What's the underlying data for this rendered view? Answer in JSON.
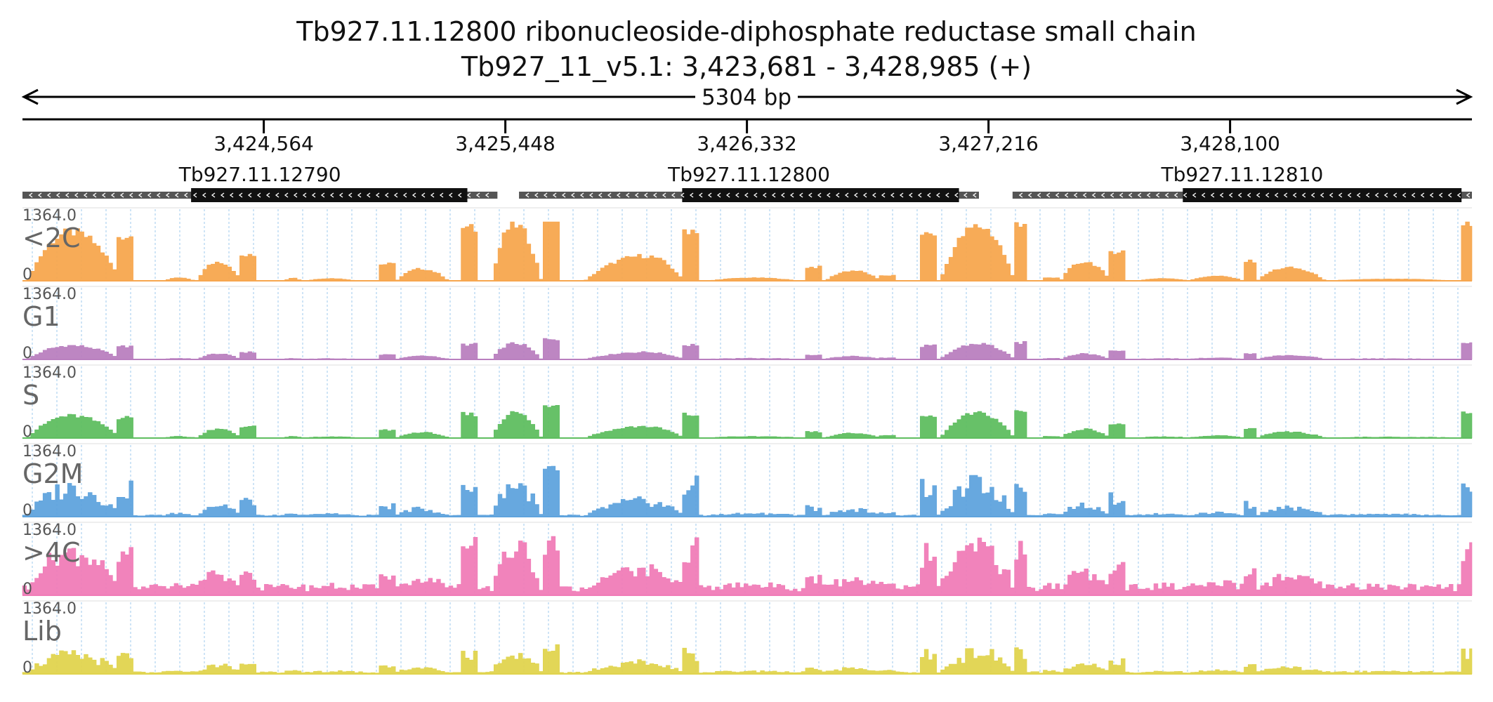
{
  "title_line1": "Tb927.11.12800  ribonucleoside-diphosphate reductase small chain",
  "title_line2": "Tb927_11_v5.1: 3,423,681 - 3,428,985 (+)",
  "span_label": "5304 bp",
  "chart_data": {
    "type": "area",
    "chromosome": "Tb927_11_v5.1",
    "x_range": [
      3423681,
      3428985
    ],
    "strand": "+",
    "x_ticks": [
      3424564,
      3425448,
      3426332,
      3427216,
      3428100
    ],
    "x_tick_labels": [
      "3,424,564",
      "3,425,448",
      "3,426,332",
      "3,427,216",
      "3,428,100"
    ],
    "genes": [
      {
        "name": "Tb927.11.12790",
        "start": 3423681,
        "end": 3425419,
        "cds_start": 3424298,
        "cds_end": 3425309,
        "strand": "-"
      },
      {
        "name": "Tb927.11.12800",
        "start": 3425498,
        "end": 3427181,
        "cds_start": 3426095,
        "cds_end": 3427108,
        "strand": "-"
      },
      {
        "name": "Tb927.11.12810",
        "start": 3427304,
        "end": 3428985,
        "cds_start": 3427927,
        "cds_end": 3428947,
        "strand": "-"
      }
    ],
    "ylim": [
      0,
      1364.0
    ],
    "ymax_label": "1364.0",
    "ymin_label": "0",
    "tracks": [
      {
        "name": "<2C",
        "color": "#f7a64e"
      },
      {
        "name": "G1",
        "color": "#b97fbf"
      },
      {
        "name": "S",
        "color": "#5fbe60"
      },
      {
        "name": "G2M",
        "color": "#5fa3dd"
      },
      {
        "name": ">4C",
        "color": "#f07cb7"
      },
      {
        "name": "Lib",
        "color": "#e0d44e"
      }
    ],
    "bin_size_bp": 15,
    "segment_features": [
      {
        "type": "hump",
        "start": 3423700,
        "end": 3424040,
        "peak": 3423860,
        "height": 0.82
      },
      {
        "type": "block",
        "start": 3424025,
        "end": 3424045,
        "height": 0.12
      },
      {
        "type": "block",
        "start": 3424020,
        "end": 3424040,
        "height": 0.05
      },
      {
        "type": "block",
        "start": 3424030,
        "end": 3424080,
        "height": 0.75
      },
      {
        "type": "hump",
        "start": 3424200,
        "end": 3424310,
        "peak": 3424255,
        "height": 0.05
      },
      {
        "type": "hump",
        "start": 3424320,
        "end": 3424480,
        "peak": 3424400,
        "height": 0.32
      },
      {
        "type": "block",
        "start": 3424480,
        "end": 3424540,
        "height": 0.42
      },
      {
        "type": "hump",
        "start": 3424640,
        "end": 3424700,
        "peak": 3424670,
        "height": 0.05
      },
      {
        "type": "hump",
        "start": 3424720,
        "end": 3424900,
        "peak": 3424810,
        "height": 0.04
      },
      {
        "type": "block",
        "start": 3424980,
        "end": 3425040,
        "height": 0.28
      },
      {
        "type": "hump",
        "start": 3425050,
        "end": 3425240,
        "peak": 3425140,
        "height": 0.2
      },
      {
        "type": "block",
        "start": 3425290,
        "end": 3425340,
        "height": 0.88
      },
      {
        "type": "hump",
        "start": 3425400,
        "end": 3425580,
        "peak": 3425480,
        "height": 0.95
      },
      {
        "type": "block",
        "start": 3425580,
        "end": 3425640,
        "height": 1.25
      },
      {
        "type": "hump",
        "start": 3425740,
        "end": 3426100,
        "peak": 3425960,
        "height": 0.42
      },
      {
        "type": "block",
        "start": 3426100,
        "end": 3426160,
        "height": 0.86
      },
      {
        "type": "hump",
        "start": 3426190,
        "end": 3426520,
        "peak": 3426360,
        "height": 0.05
      },
      {
        "type": "block",
        "start": 3426540,
        "end": 3426600,
        "height": 0.23
      },
      {
        "type": "hump",
        "start": 3426620,
        "end": 3426820,
        "peak": 3426720,
        "height": 0.17
      },
      {
        "type": "block",
        "start": 3426820,
        "end": 3426870,
        "height": 0.09
      },
      {
        "type": "block",
        "start": 3426970,
        "end": 3427030,
        "height": 0.8
      },
      {
        "type": "hump",
        "start": 3427040,
        "end": 3427310,
        "peak": 3427180,
        "height": 0.92
      },
      {
        "type": "block",
        "start": 3427310,
        "end": 3427360,
        "height": 0.99
      },
      {
        "type": "block",
        "start": 3427410,
        "end": 3427470,
        "height": 0.05
      },
      {
        "type": "hump",
        "start": 3427480,
        "end": 3427660,
        "peak": 3427570,
        "height": 0.32
      },
      {
        "type": "block",
        "start": 3427660,
        "end": 3427710,
        "height": 0.5
      },
      {
        "type": "hump",
        "start": 3427760,
        "end": 3427950,
        "peak": 3427860,
        "height": 0.04
      },
      {
        "type": "hump",
        "start": 3427950,
        "end": 3428150,
        "peak": 3428050,
        "height": 0.08
      },
      {
        "type": "block",
        "start": 3428150,
        "end": 3428200,
        "height": 0.33
      },
      {
        "type": "hump",
        "start": 3428200,
        "end": 3428450,
        "peak": 3428310,
        "height": 0.22
      },
      {
        "type": "hump",
        "start": 3428450,
        "end": 3428920,
        "peak": 3428700,
        "height": 0.03
      },
      {
        "type": "block",
        "start": 3428950,
        "end": 3428985,
        "height": 0.95
      }
    ],
    "track_scales": [
      {
        "name": "<2C",
        "scale": 1.0,
        "floor": 0.0
      },
      {
        "name": "G1",
        "scale": 0.28,
        "floor": 0.03
      },
      {
        "name": "S",
        "scale": 0.45,
        "floor": 0.02
      },
      {
        "name": ">4C",
        "scale": 0.7,
        "floor": 0.18
      },
      {
        "name": "G2M",
        "scale": 0.55,
        "floor": 0.04
      },
      {
        "name": "Lib",
        "scale": 0.35,
        "floor": 0.08
      }
    ]
  }
}
